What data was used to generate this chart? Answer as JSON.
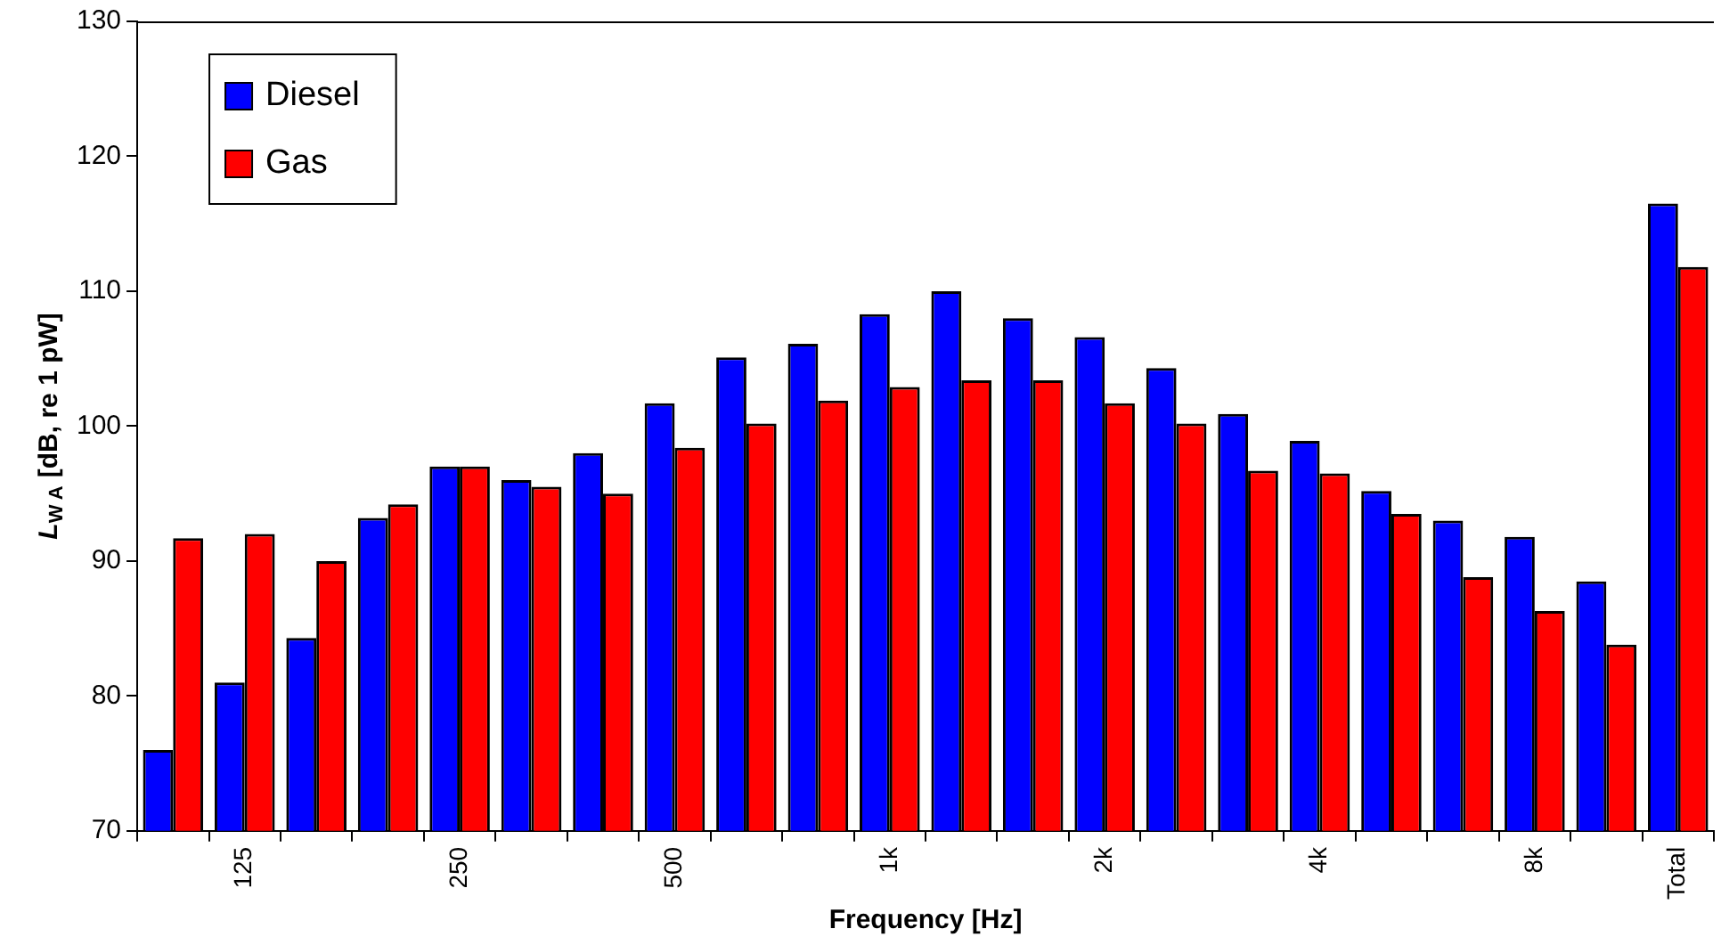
{
  "chart_data": {
    "type": "bar",
    "xlabel": "Frequency [Hz]",
    "ylabel": "L$_{W A}$ [dB, re 1 pW]",
    "categories": [
      null,
      "125",
      null,
      null,
      "250",
      null,
      null,
      "500",
      null,
      null,
      "1k",
      null,
      null,
      "2k",
      null,
      null,
      "4k",
      null,
      null,
      "8k",
      null,
      "Total"
    ],
    "series": [
      {
        "name": "Diesel",
        "color": "#0000ff",
        "values": [
          76,
          81,
          84.3,
          93.2,
          97,
          96,
          98,
          101.7,
          105.1,
          106.1,
          108.3,
          110,
          108,
          106.6,
          104.3,
          100.9,
          98.9,
          95.2,
          93,
          91.8,
          88.5,
          116.5
        ]
      },
      {
        "name": "Gas",
        "color": "#ff0000",
        "values": [
          91.7,
          92,
          90,
          94.2,
          97,
          95.5,
          95,
          98.4,
          100.2,
          101.9,
          102.9,
          103.4,
          103.4,
          101.7,
          100.2,
          96.7,
          96.5,
          93.5,
          88.8,
          86.3,
          83.8,
          111.8
        ]
      }
    ],
    "ylim": [
      70,
      130
    ],
    "yticks": [
      70,
      80,
      90,
      100,
      110,
      120,
      130
    ],
    "grid": false,
    "legend": "top left"
  }
}
